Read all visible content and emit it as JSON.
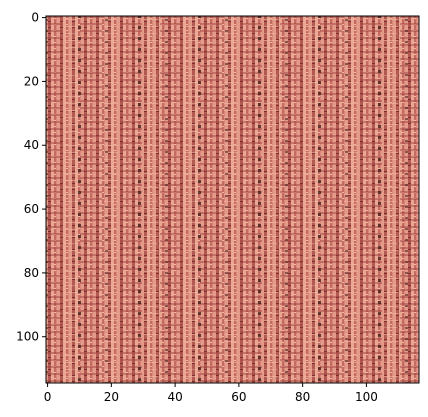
{
  "chart_data": {
    "type": "image",
    "xlim": [
      -0.5,
      116.5
    ],
    "ylim": [
      114.5,
      -0.5
    ],
    "xticks": [
      0,
      20,
      40,
      60,
      80,
      100
    ],
    "yticks": [
      0,
      20,
      40,
      60,
      80,
      100
    ]
  }
}
